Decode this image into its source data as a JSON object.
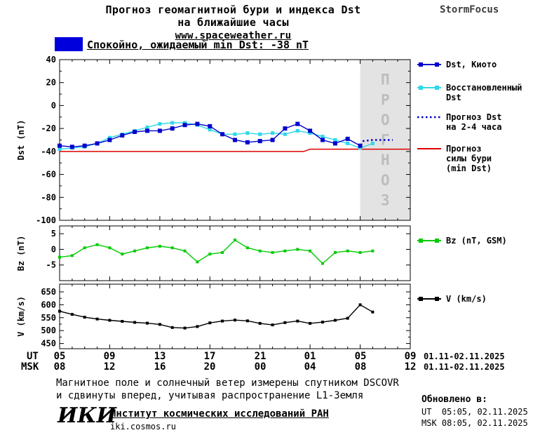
{
  "header": {
    "title_line1": "Прогноз геомагнитной бури и индекса Dst",
    "title_line2": "на ближайшие часы",
    "site_link": "www.spaceweather.ru",
    "brand": "StormFocus"
  },
  "status_banner": {
    "text": "Спокойно, ожидаемый min Dst: -38 nT",
    "swatch_color": "#0000dd"
  },
  "legend": {
    "dst_kyoto": "Dst, Киото",
    "restored_line1": "Восстановленный",
    "restored_line2": "Dst",
    "forecast_line1": "Прогноз Dst",
    "forecast_line2": "на 2-4 часа",
    "min_line1": "Прогноз",
    "min_line2": "силы бури",
    "min_line3": "(min Dst)",
    "bz": "Bz (nT, GSM)",
    "v": "V (km/s)"
  },
  "xaxis": {
    "ut_label": "UT",
    "msk_label": "MSK",
    "ut_ticks": [
      "05",
      "09",
      "13",
      "17",
      "21",
      "01",
      "05",
      "09"
    ],
    "msk_ticks": [
      "08",
      "12",
      "16",
      "20",
      "00",
      "04",
      "08",
      "12"
    ],
    "ut_date_range": "01.11-02.11.2025",
    "msk_date_range": "01.11-02.11.2025"
  },
  "footer": {
    "note_line1": "Магнитное поле и солнечный ветер измерены спутником DSCOVR",
    "note_line2": "и сдвинуты вперед, учитывая распространение L1-Земля",
    "updated_label": "Обновлено в:",
    "updated_ut": "UT  05:05, 02.11.2025",
    "updated_msk": "MSK 08:05, 02.11.2025",
    "logo_text": "ИКИ",
    "institute": "Институт космических исследований РАН",
    "institute_site": "iki.cosmos.ru"
  },
  "chart_data": [
    {
      "id": "dst",
      "type": "line",
      "ylabel": "Dst (nT)",
      "xlim": [
        0,
        28
      ],
      "x_hours_start_ut": "05",
      "ylim": [
        -100,
        40
      ],
      "yticks": [
        40,
        20,
        0,
        -20,
        -40,
        -60,
        -80,
        -100
      ],
      "y_minor": [
        30,
        10,
        -10,
        -30,
        -50,
        -70,
        -90
      ],
      "forecast_region": {
        "x_start": 24,
        "x_end": 28,
        "label": "ПРОГНОЗ",
        "fill": "#e3e3e3",
        "text_color": "#bdbdbd"
      },
      "series": [
        {
          "name": "Прогноз силы бури (min Dst)",
          "color": "#dd0000",
          "line_width": 1.5,
          "x": [
            0,
            19.5,
            20,
            28
          ],
          "y": [
            -40,
            -40,
            -38,
            -38
          ]
        },
        {
          "name": "Восстановленный Dst",
          "color": "#2fd8e8",
          "marker": "square",
          "marker_size": 5,
          "line_width": 1.4,
          "x": [
            0,
            1,
            2,
            3,
            4,
            5,
            6,
            7,
            8,
            9,
            10,
            11,
            12,
            13,
            14,
            15,
            16,
            17,
            18,
            19,
            20,
            21,
            22,
            23,
            24,
            25
          ],
          "y": [
            -38,
            -37,
            -36,
            -33,
            -28,
            -25,
            -22,
            -19,
            -16,
            -15,
            -15,
            -17,
            -21,
            -25,
            -25,
            -24,
            -25,
            -24,
            -25,
            -22,
            -24,
            -27,
            -30,
            -33,
            -37,
            -33
          ]
        },
        {
          "name": "Dst, Киото",
          "color": "#0000cc",
          "marker": "square",
          "marker_size": 6,
          "line_width": 1.4,
          "x": [
            0,
            1,
            2,
            3,
            4,
            5,
            6,
            7,
            8,
            9,
            10,
            11,
            12,
            13,
            14,
            15,
            16,
            17,
            18,
            19,
            20,
            21,
            22,
            23,
            24
          ],
          "y": [
            -35,
            -36,
            -35,
            -33,
            -30,
            -26,
            -23,
            -22,
            -22,
            -20,
            -17,
            -16,
            -18,
            -25,
            -30,
            -32,
            -31,
            -30,
            -20,
            -16,
            -22,
            -30,
            -33,
            -29,
            -35
          ]
        },
        {
          "name": "Прогноз Dst на 2-4 часа",
          "color": "#0000cc",
          "style": "dotted",
          "line_width": 2.5,
          "x": [
            24.2,
            25.0,
            25.8,
            26.6
          ],
          "y": [
            -31,
            -30,
            -30,
            -30
          ]
        }
      ]
    },
    {
      "id": "bz",
      "type": "line",
      "ylabel": "Bz (nT)",
      "xlim": [
        0,
        28
      ],
      "ylim": [
        -10,
        7.5
      ],
      "yticks": [
        5,
        0,
        -5
      ],
      "y_minor": [],
      "series": [
        {
          "name": "Bz (nT, GSM)",
          "color": "#00cc00",
          "marker": "square",
          "marker_size": 4,
          "line_width": 1.4,
          "x": [
            0,
            1,
            2,
            3,
            4,
            5,
            6,
            7,
            8,
            9,
            10,
            11,
            12,
            13,
            14,
            15,
            16,
            17,
            18,
            19,
            20,
            21,
            22,
            23,
            24,
            25
          ],
          "y": [
            -2.5,
            -2,
            0.5,
            1.5,
            0.5,
            -1.5,
            -0.5,
            0.5,
            1,
            0.5,
            -0.5,
            -4,
            -1.5,
            -1,
            3,
            0.5,
            -0.5,
            -1,
            -0.5,
            0,
            -0.5,
            -4.5,
            -1,
            -0.5,
            -1,
            -0.5
          ]
        }
      ]
    },
    {
      "id": "v",
      "type": "line",
      "ylabel": "V (km/s)",
      "xlim": [
        0,
        28
      ],
      "ylim": [
        430,
        680
      ],
      "yticks": [
        650,
        600,
        550,
        500,
        450
      ],
      "y_minor": [
        625,
        575,
        525,
        475
      ],
      "series": [
        {
          "name": "V (km/s)",
          "color": "#000000",
          "marker": "square",
          "marker_size": 4,
          "line_width": 1.4,
          "x": [
            0,
            1,
            2,
            3,
            4,
            5,
            6,
            7,
            8,
            9,
            10,
            11,
            12,
            13,
            14,
            15,
            16,
            17,
            18,
            19,
            20,
            21,
            22,
            23,
            24,
            25
          ],
          "y": [
            575,
            563,
            552,
            545,
            540,
            536,
            532,
            529,
            524,
            512,
            510,
            516,
            530,
            537,
            541,
            538,
            528,
            522,
            531,
            537,
            528,
            533,
            540,
            548,
            600,
            572
          ]
        }
      ]
    }
  ]
}
